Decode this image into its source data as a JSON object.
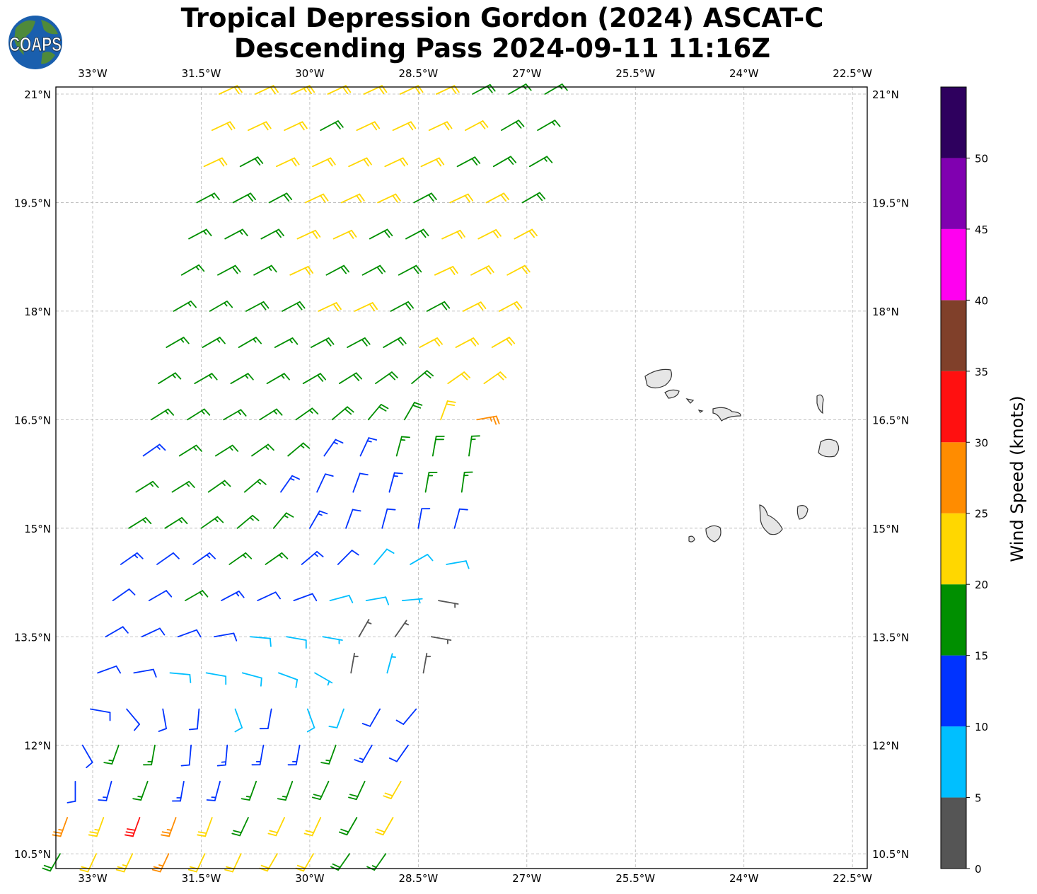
{
  "title": {
    "line1": "Tropical Depression Gordon (2024) ASCAT-C",
    "line2": "Descending Pass 2024-09-11 11:16Z"
  },
  "logo": {
    "text": "COAPS",
    "icon": "globe-icon"
  },
  "chart_data": {
    "type": "wind-barb-map",
    "xlim_lon": [
      -33.5,
      -22.3
    ],
    "ylim_lat": [
      10.3,
      21.1
    ],
    "grid": true,
    "lon_ticks": [
      -33,
      -31.5,
      -30,
      -28.5,
      -27,
      -25.5,
      -24,
      -22.5
    ],
    "lon_tick_labels": [
      "33°W",
      "31.5°W",
      "30°W",
      "28.5°W",
      "27°W",
      "25.5°W",
      "24°W",
      "22.5°W"
    ],
    "lat_ticks": [
      21,
      19.5,
      18,
      16.5,
      15,
      13.5,
      12,
      10.5
    ],
    "lat_tick_labels": [
      "21°N",
      "19.5°N",
      "18°N",
      "16.5°N",
      "15°N",
      "13.5°N",
      "12°N",
      "10.5°N"
    ],
    "colorbar": {
      "label": "Wind Speed (knots)",
      "levels": [
        0,
        5,
        10,
        15,
        20,
        25,
        30,
        35,
        40,
        45,
        50,
        55
      ],
      "colors": [
        "#555555",
        "#00bfff",
        "#0033ff",
        "#008f00",
        "#ffd700",
        "#ff8c00",
        "#ff1010",
        "#80402a",
        "#ff00f0",
        "#8000b0",
        "#2e005e"
      ],
      "ticks": [
        0,
        5,
        10,
        15,
        20,
        25,
        30,
        35,
        40,
        45,
        50
      ],
      "tick_labels": [
        "0",
        "5",
        "10",
        "15",
        "20",
        "25",
        "30",
        "35",
        "40",
        "45",
        "50"
      ]
    },
    "barb_rows": [
      {
        "lat": 21.0,
        "lon_start": -31.25,
        "speed_kt": [
          22,
          22,
          23,
          22,
          22,
          21,
          21,
          18,
          17,
          17
        ],
        "dir_from_deg": [
          65,
          65,
          65,
          65,
          65,
          65,
          65,
          62,
          60,
          60
        ]
      },
      {
        "lat": 20.5,
        "lon_start": -31.35,
        "speed_kt": [
          21,
          22,
          22,
          19,
          22,
          22,
          21,
          21,
          18,
          17
        ],
        "dir_from_deg": [
          65,
          65,
          65,
          62,
          65,
          65,
          65,
          62,
          60,
          60
        ]
      },
      {
        "lat": 20.0,
        "lon_start": -31.46,
        "speed_kt": [
          21,
          19,
          21,
          22,
          22,
          22,
          21,
          19,
          18,
          17
        ],
        "dir_from_deg": [
          65,
          62,
          65,
          65,
          65,
          65,
          65,
          62,
          60,
          60
        ]
      },
      {
        "lat": 19.5,
        "lon_start": -31.56,
        "speed_kt": [
          17,
          18,
          18,
          21,
          22,
          21,
          19,
          21,
          20,
          18
        ],
        "dir_from_deg": [
          62,
          62,
          62,
          65,
          65,
          65,
          62,
          65,
          62,
          60
        ]
      },
      {
        "lat": 19.0,
        "lon_start": -31.67,
        "speed_kt": [
          17,
          17,
          18,
          21,
          21,
          19,
          18,
          21,
          22,
          21
        ],
        "dir_from_deg": [
          62,
          62,
          62,
          65,
          65,
          62,
          62,
          65,
          63,
          62
        ]
      },
      {
        "lat": 18.5,
        "lon_start": -31.77,
        "speed_kt": [
          17,
          18,
          17,
          21,
          18,
          18,
          19,
          21,
          22,
          22
        ],
        "dir_from_deg": [
          60,
          62,
          62,
          65,
          62,
          62,
          62,
          65,
          63,
          62
        ]
      },
      {
        "lat": 18.0,
        "lon_start": -31.88,
        "speed_kt": [
          17,
          17,
          18,
          18,
          21,
          21,
          19,
          18,
          21,
          22
        ],
        "dir_from_deg": [
          60,
          60,
          62,
          62,
          65,
          65,
          62,
          62,
          63,
          62
        ]
      },
      {
        "lat": 17.5,
        "lon_start": -31.98,
        "speed_kt": [
          16,
          17,
          17,
          17,
          18,
          18,
          18,
          21,
          22,
          21
        ],
        "dir_from_deg": [
          60,
          60,
          60,
          62,
          62,
          62,
          60,
          62,
          62,
          60
        ]
      },
      {
        "lat": 17.0,
        "lon_start": -32.09,
        "speed_kt": [
          16,
          17,
          17,
          17,
          18,
          18,
          18,
          19,
          22,
          21
        ],
        "dir_from_deg": [
          58,
          60,
          60,
          60,
          60,
          58,
          55,
          50,
          55,
          55
        ]
      },
      {
        "lat": 16.5,
        "lon_start": -32.19,
        "speed_kt": [
          16,
          17,
          17,
          17,
          17,
          18,
          18,
          19,
          22,
          27
        ],
        "dir_from_deg": [
          58,
          58,
          60,
          58,
          55,
          50,
          40,
          30,
          20,
          80
        ]
      },
      {
        "lat": 16.0,
        "lon_start": -32.3,
        "speed_kt": [
          13,
          16,
          16,
          17,
          16,
          14,
          13,
          17,
          18,
          17
        ],
        "dir_from_deg": [
          55,
          58,
          58,
          55,
          50,
          35,
          25,
          15,
          10,
          8
        ]
      },
      {
        "lat": 15.5,
        "lon_start": -32.4,
        "speed_kt": [
          16,
          16,
          17,
          16,
          13,
          12,
          12,
          13,
          16,
          17
        ],
        "dir_from_deg": [
          58,
          58,
          55,
          50,
          35,
          25,
          20,
          15,
          10,
          8
        ]
      },
      {
        "lat": 15.0,
        "lon_start": -32.5,
        "speed_kt": [
          16,
          16,
          16,
          17,
          15,
          13,
          12,
          11,
          12,
          12
        ],
        "dir_from_deg": [
          58,
          58,
          55,
          50,
          40,
          30,
          20,
          15,
          10,
          15
        ]
      },
      {
        "lat": 14.5,
        "lon_start": -32.61,
        "speed_kt": [
          13,
          12,
          13,
          16,
          15,
          13,
          11,
          9,
          8,
          8
        ],
        "dir_from_deg": [
          55,
          55,
          55,
          55,
          55,
          50,
          45,
          40,
          60,
          80
        ]
      },
      {
        "lat": 14.0,
        "lon_start": -32.72,
        "speed_kt": [
          12,
          12,
          16,
          13,
          12,
          11,
          9,
          8,
          7,
          4
        ],
        "dir_from_deg": [
          55,
          60,
          60,
          62,
          65,
          70,
          75,
          80,
          85,
          100
        ]
      },
      {
        "lat": 13.5,
        "lon_start": -32.82,
        "speed_kt": [
          12,
          12,
          12,
          11,
          9,
          8,
          7,
          4,
          4,
          3
        ],
        "dir_from_deg": [
          60,
          65,
          70,
          80,
          95,
          100,
          100,
          30,
          35,
          100
        ]
      },
      {
        "lat": 13.0,
        "lon_start": -32.93,
        "speed_kt": [
          12,
          11,
          9,
          8,
          8,
          8,
          7,
          4,
          6,
          3
        ],
        "dir_from_deg": [
          70,
          80,
          95,
          100,
          105,
          110,
          120,
          10,
          15,
          10
        ]
      },
      {
        "lat": 12.5,
        "lon_start": -33.03,
        "speed_kt": [
          12,
          12,
          11,
          11,
          8,
          11,
          8,
          8,
          11,
          12
        ],
        "dir_from_deg": [
          100,
          140,
          170,
          185,
          160,
          190,
          160,
          200,
          210,
          220
        ]
      },
      {
        "lat": 12.0,
        "lon_start": -33.14,
        "speed_kt": [
          12,
          16,
          17,
          12,
          13,
          13,
          13,
          16,
          13,
          12
        ],
        "dir_from_deg": [
          150,
          200,
          190,
          185,
          185,
          190,
          190,
          200,
          210,
          215
        ]
      },
      {
        "lat": 11.5,
        "lon_start": -33.24,
        "speed_kt": [
          12,
          13,
          17,
          13,
          13,
          16,
          17,
          18,
          18,
          21
        ],
        "dir_from_deg": [
          180,
          195,
          200,
          190,
          195,
          200,
          200,
          205,
          205,
          210
        ]
      },
      {
        "lat": 11.0,
        "lon_start": -33.35,
        "speed_kt": [
          27,
          23,
          31,
          27,
          22,
          18,
          21,
          22,
          18,
          21
        ],
        "dir_from_deg": [
          200,
          200,
          200,
          200,
          200,
          205,
          205,
          205,
          210,
          210
        ]
      },
      {
        "lat": 10.5,
        "lon_start": -33.45,
        "speed_kt": [
          18,
          22,
          23,
          27,
          22,
          22,
          21,
          21,
          18,
          17
        ],
        "dir_from_deg": [
          210,
          205,
          205,
          205,
          205,
          205,
          210,
          210,
          215,
          215
        ]
      }
    ]
  }
}
